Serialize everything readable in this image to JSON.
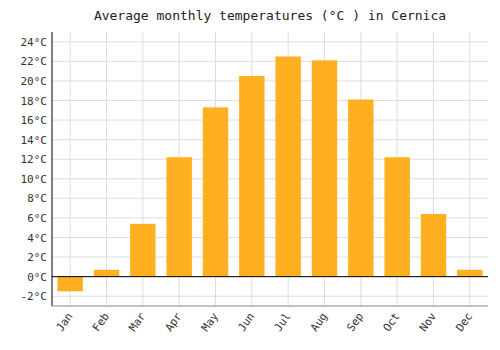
{
  "chart_data": {
    "type": "bar",
    "title": "Average monthly temperatures (°C ) in Cernica",
    "categories": [
      "Jan",
      "Feb",
      "Mar",
      "Apr",
      "May",
      "Jun",
      "Jul",
      "Aug",
      "Sep",
      "Oct",
      "Nov",
      "Dec"
    ],
    "values": [
      -1.5,
      0.7,
      5.4,
      12.2,
      17.3,
      20.5,
      22.5,
      22.1,
      18.1,
      12.2,
      6.4,
      0.7
    ],
    "color": "#FFB020",
    "ylim": [
      -3,
      25
    ],
    "yticks": [
      {
        "value": -2,
        "label": "-2°C"
      },
      {
        "value": 0,
        "label": "0°C"
      },
      {
        "value": 2,
        "label": "2°C"
      },
      {
        "value": 4,
        "label": "4°C"
      },
      {
        "value": 6,
        "label": "6°C"
      },
      {
        "value": 8,
        "label": "8°C"
      },
      {
        "value": 10,
        "label": "10°C"
      },
      {
        "value": 12,
        "label": "12°C"
      },
      {
        "value": 14,
        "label": "14°C"
      },
      {
        "value": 16,
        "label": "16°C"
      },
      {
        "value": 18,
        "label": "18°C"
      },
      {
        "value": 20,
        "label": "20°C"
      },
      {
        "value": 22,
        "label": "22°C"
      },
      {
        "value": 24,
        "label": "24°C"
      }
    ],
    "grid": true
  }
}
